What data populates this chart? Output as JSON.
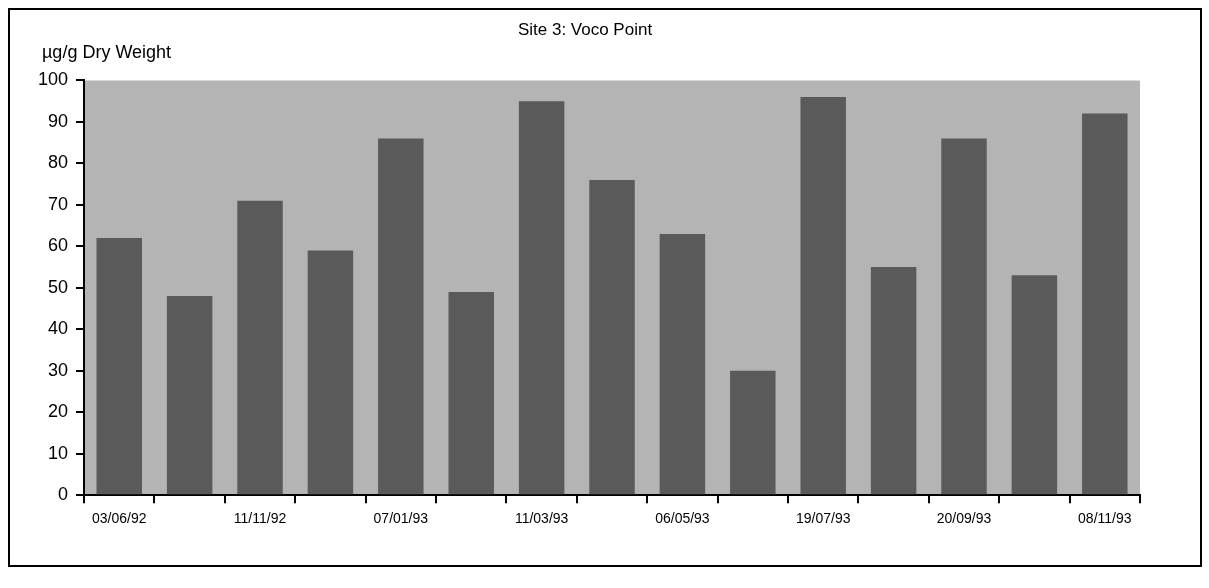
{
  "chart_data": {
    "type": "bar",
    "title": "Site 3: Voco Point",
    "ylabel": "µg/g Dry Weight",
    "categories": [
      "03/06/92",
      null,
      "11/11/92",
      null,
      "07/01/93",
      null,
      "11/03/93",
      null,
      "06/05/93",
      null,
      "19/07/93",
      null,
      "20/09/93",
      null,
      "08/11/93"
    ],
    "values": [
      62,
      48,
      71,
      59,
      86,
      49,
      95,
      76,
      63,
      30,
      96,
      55,
      86,
      53,
      92
    ],
    "color": "#5a5a5a",
    "ylim": [
      0,
      100
    ],
    "yticks": [
      0,
      10,
      20,
      30,
      40,
      50,
      60,
      70,
      80,
      90,
      100
    ],
    "grid": false,
    "legend": false
  }
}
